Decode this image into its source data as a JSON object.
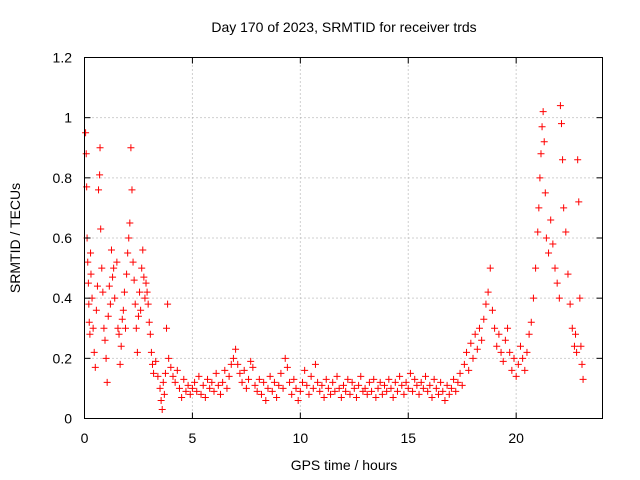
{
  "chart_data": {
    "type": "scatter",
    "title": "Day 170 of 2023, SRMTID for receiver trds",
    "xlabel": "GPS time / hours",
    "ylabel": "SRMTID / TECUs",
    "xlim": [
      0,
      24
    ],
    "ylim": [
      0,
      1.2
    ],
    "xticks": [
      0,
      5,
      10,
      15,
      20
    ],
    "yticks": [
      0,
      0.2,
      0.4,
      0.6,
      0.8,
      1,
      1.2
    ],
    "xtick_labels": [
      "0",
      "5",
      "10",
      "15",
      "20"
    ],
    "ytick_labels": [
      "0",
      "0.2",
      "0.4",
      "0.6",
      "0.8",
      "1",
      "1.2"
    ],
    "grid": true,
    "marker": "+",
    "color": "#ff0000",
    "series": [
      {
        "name": "SRMTID",
        "points": [
          [
            0.05,
            0.95
          ],
          [
            0.08,
            0.88
          ],
          [
            0.1,
            0.77
          ],
          [
            0.12,
            0.6
          ],
          [
            0.15,
            0.52
          ],
          [
            0.18,
            0.45
          ],
          [
            0.2,
            0.38
          ],
          [
            0.22,
            0.32
          ],
          [
            0.25,
            0.28
          ],
          [
            0.28,
            0.55
          ],
          [
            0.3,
            0.48
          ],
          [
            0.35,
            0.4
          ],
          [
            0.4,
            0.3
          ],
          [
            0.45,
            0.22
          ],
          [
            0.5,
            0.17
          ],
          [
            0.55,
            0.36
          ],
          [
            0.6,
            0.44
          ],
          [
            0.65,
            0.76
          ],
          [
            0.7,
            0.81
          ],
          [
            0.72,
            0.9
          ],
          [
            0.75,
            0.63
          ],
          [
            0.8,
            0.5
          ],
          [
            0.85,
            0.42
          ],
          [
            0.9,
            0.3
          ],
          [
            0.95,
            0.26
          ],
          [
            1.0,
            0.2
          ],
          [
            1.05,
            0.12
          ],
          [
            1.1,
            0.34
          ],
          [
            1.15,
            0.44
          ],
          [
            1.2,
            0.38
          ],
          [
            1.25,
            0.56
          ],
          [
            1.3,
            0.47
          ],
          [
            1.35,
            0.5
          ],
          [
            1.4,
            0.4
          ],
          [
            1.5,
            0.52
          ],
          [
            1.55,
            0.3
          ],
          [
            1.6,
            0.28
          ],
          [
            1.65,
            0.18
          ],
          [
            1.7,
            0.24
          ],
          [
            1.75,
            0.33
          ],
          [
            1.8,
            0.36
          ],
          [
            1.85,
            0.42
          ],
          [
            1.9,
            0.3
          ],
          [
            1.95,
            0.48
          ],
          [
            2.0,
            0.55
          ],
          [
            2.05,
            0.6
          ],
          [
            2.1,
            0.65
          ],
          [
            2.15,
            0.9
          ],
          [
            2.2,
            0.76
          ],
          [
            2.25,
            0.52
          ],
          [
            2.3,
            0.46
          ],
          [
            2.35,
            0.38
          ],
          [
            2.4,
            0.3
          ],
          [
            2.45,
            0.22
          ],
          [
            2.5,
            0.34
          ],
          [
            2.55,
            0.42
          ],
          [
            2.6,
            0.36
          ],
          [
            2.65,
            0.5
          ],
          [
            2.7,
            0.56
          ],
          [
            2.75,
            0.47
          ],
          [
            2.8,
            0.4
          ],
          [
            2.85,
            0.45
          ],
          [
            2.9,
            0.42
          ],
          [
            2.95,
            0.38
          ],
          [
            3.0,
            0.32
          ],
          [
            3.05,
            0.28
          ],
          [
            3.1,
            0.22
          ],
          [
            3.15,
            0.18
          ],
          [
            3.2,
            0.15
          ],
          [
            3.3,
            0.19
          ],
          [
            3.4,
            0.14
          ],
          [
            3.5,
            0.1
          ],
          [
            3.55,
            0.06
          ],
          [
            3.6,
            0.03
          ],
          [
            3.65,
            0.12
          ],
          [
            3.7,
            0.08
          ],
          [
            3.75,
            0.15
          ],
          [
            3.8,
            0.3
          ],
          [
            3.85,
            0.38
          ],
          [
            3.9,
            0.2
          ],
          [
            4.0,
            0.17
          ],
          [
            4.1,
            0.14
          ],
          [
            4.2,
            0.12
          ],
          [
            4.3,
            0.16
          ],
          [
            4.4,
            0.1
          ],
          [
            4.5,
            0.07
          ],
          [
            4.6,
            0.13
          ],
          [
            4.7,
            0.09
          ],
          [
            4.8,
            0.11
          ],
          [
            4.9,
            0.08
          ],
          [
            5.0,
            0.1
          ],
          [
            5.1,
            0.12
          ],
          [
            5.2,
            0.09
          ],
          [
            5.3,
            0.14
          ],
          [
            5.4,
            0.08
          ],
          [
            5.5,
            0.11
          ],
          [
            5.6,
            0.07
          ],
          [
            5.7,
            0.13
          ],
          [
            5.8,
            0.1
          ],
          [
            5.9,
            0.12
          ],
          [
            6.0,
            0.09
          ],
          [
            6.1,
            0.15
          ],
          [
            6.2,
            0.11
          ],
          [
            6.3,
            0.08
          ],
          [
            6.4,
            0.12
          ],
          [
            6.5,
            0.16
          ],
          [
            6.6,
            0.1
          ],
          [
            6.7,
            0.14
          ],
          [
            6.8,
            0.18
          ],
          [
            6.9,
            0.2
          ],
          [
            7.0,
            0.23
          ],
          [
            7.1,
            0.18
          ],
          [
            7.2,
            0.15
          ],
          [
            7.3,
            0.12
          ],
          [
            7.4,
            0.16
          ],
          [
            7.5,
            0.1
          ],
          [
            7.6,
            0.13
          ],
          [
            7.7,
            0.19
          ],
          [
            7.8,
            0.17
          ],
          [
            7.9,
            0.11
          ],
          [
            8.0,
            0.09
          ],
          [
            8.1,
            0.13
          ],
          [
            8.2,
            0.08
          ],
          [
            8.3,
            0.12
          ],
          [
            8.4,
            0.06
          ],
          [
            8.5,
            0.1
          ],
          [
            8.6,
            0.14
          ],
          [
            8.7,
            0.09
          ],
          [
            8.8,
            0.12
          ],
          [
            8.9,
            0.07
          ],
          [
            9.0,
            0.11
          ],
          [
            9.1,
            0.15
          ],
          [
            9.2,
            0.1
          ],
          [
            9.3,
            0.2
          ],
          [
            9.4,
            0.17
          ],
          [
            9.5,
            0.12
          ],
          [
            9.6,
            0.08
          ],
          [
            9.7,
            0.13
          ],
          [
            9.8,
            0.1
          ],
          [
            9.9,
            0.06
          ],
          [
            10.0,
            0.09
          ],
          [
            10.1,
            0.12
          ],
          [
            10.2,
            0.16
          ],
          [
            10.3,
            0.11
          ],
          [
            10.4,
            0.08
          ],
          [
            10.5,
            0.14
          ],
          [
            10.6,
            0.1
          ],
          [
            10.7,
            0.18
          ],
          [
            10.8,
            0.12
          ],
          [
            10.9,
            0.09
          ],
          [
            11.0,
            0.11
          ],
          [
            11.1,
            0.07
          ],
          [
            11.2,
            0.13
          ],
          [
            11.3,
            0.1
          ],
          [
            11.4,
            0.08
          ],
          [
            11.5,
            0.12
          ],
          [
            11.6,
            0.09
          ],
          [
            11.7,
            0.14
          ],
          [
            11.8,
            0.1
          ],
          [
            11.9,
            0.07
          ],
          [
            12.0,
            0.11
          ],
          [
            12.1,
            0.09
          ],
          [
            12.2,
            0.13
          ],
          [
            12.3,
            0.08
          ],
          [
            12.4,
            0.12
          ],
          [
            12.5,
            0.1
          ],
          [
            12.6,
            0.07
          ],
          [
            12.7,
            0.11
          ],
          [
            12.8,
            0.14
          ],
          [
            12.9,
            0.09
          ],
          [
            13.0,
            0.1
          ],
          [
            13.1,
            0.08
          ],
          [
            13.2,
            0.12
          ],
          [
            13.3,
            0.09
          ],
          [
            13.4,
            0.13
          ],
          [
            13.5,
            0.07
          ],
          [
            13.6,
            0.1
          ],
          [
            13.7,
            0.12
          ],
          [
            13.8,
            0.08
          ],
          [
            13.9,
            0.11
          ],
          [
            14.0,
            0.09
          ],
          [
            14.1,
            0.13
          ],
          [
            14.2,
            0.1
          ],
          [
            14.3,
            0.07
          ],
          [
            14.4,
            0.12
          ],
          [
            14.5,
            0.09
          ],
          [
            14.6,
            0.14
          ],
          [
            14.7,
            0.11
          ],
          [
            14.8,
            0.08
          ],
          [
            14.9,
            0.12
          ],
          [
            15.0,
            0.1
          ],
          [
            15.1,
            0.15
          ],
          [
            15.2,
            0.09
          ],
          [
            15.3,
            0.13
          ],
          [
            15.4,
            0.11
          ],
          [
            15.5,
            0.08
          ],
          [
            15.6,
            0.12
          ],
          [
            15.7,
            0.1
          ],
          [
            15.8,
            0.14
          ],
          [
            15.9,
            0.09
          ],
          [
            16.0,
            0.11
          ],
          [
            16.1,
            0.07
          ],
          [
            16.2,
            0.13
          ],
          [
            16.3,
            0.1
          ],
          [
            16.4,
            0.08
          ],
          [
            16.5,
            0.12
          ],
          [
            16.6,
            0.09
          ],
          [
            16.7,
            0.06
          ],
          [
            16.8,
            0.11
          ],
          [
            16.9,
            0.08
          ],
          [
            17.0,
            0.1
          ],
          [
            17.1,
            0.13
          ],
          [
            17.2,
            0.09
          ],
          [
            17.3,
            0.12
          ],
          [
            17.4,
            0.15
          ],
          [
            17.5,
            0.11
          ],
          [
            17.6,
            0.18
          ],
          [
            17.7,
            0.22
          ],
          [
            17.8,
            0.16
          ],
          [
            17.9,
            0.25
          ],
          [
            18.0,
            0.2
          ],
          [
            18.1,
            0.28
          ],
          [
            18.2,
            0.23
          ],
          [
            18.3,
            0.3
          ],
          [
            18.4,
            0.26
          ],
          [
            18.5,
            0.33
          ],
          [
            18.6,
            0.38
          ],
          [
            18.7,
            0.42
          ],
          [
            18.8,
            0.5
          ],
          [
            18.9,
            0.36
          ],
          [
            19.0,
            0.3
          ],
          [
            19.1,
            0.24
          ],
          [
            19.2,
            0.28
          ],
          [
            19.3,
            0.22
          ],
          [
            19.4,
            0.19
          ],
          [
            19.5,
            0.26
          ],
          [
            19.6,
            0.3
          ],
          [
            19.7,
            0.22
          ],
          [
            19.8,
            0.16
          ],
          [
            19.9,
            0.2
          ],
          [
            20.0,
            0.14
          ],
          [
            20.1,
            0.18
          ],
          [
            20.2,
            0.24
          ],
          [
            20.3,
            0.2
          ],
          [
            20.4,
            0.16
          ],
          [
            20.5,
            0.22
          ],
          [
            20.6,
            0.28
          ],
          [
            20.7,
            0.32
          ],
          [
            20.8,
            0.4
          ],
          [
            20.9,
            0.5
          ],
          [
            21.0,
            0.62
          ],
          [
            21.05,
            0.7
          ],
          [
            21.1,
            0.8
          ],
          [
            21.15,
            0.88
          ],
          [
            21.2,
            0.97
          ],
          [
            21.25,
            1.02
          ],
          [
            21.3,
            0.92
          ],
          [
            21.35,
            0.75
          ],
          [
            21.4,
            0.6
          ],
          [
            21.5,
            0.55
          ],
          [
            21.6,
            0.66
          ],
          [
            21.7,
            0.58
          ],
          [
            21.8,
            0.5
          ],
          [
            21.9,
            0.45
          ],
          [
            22.0,
            0.4
          ],
          [
            22.05,
            1.04
          ],
          [
            22.1,
            0.98
          ],
          [
            22.15,
            0.86
          ],
          [
            22.2,
            0.7
          ],
          [
            22.3,
            0.62
          ],
          [
            22.4,
            0.48
          ],
          [
            22.5,
            0.38
          ],
          [
            22.6,
            0.3
          ],
          [
            22.7,
            0.24
          ],
          [
            22.75,
            0.28
          ],
          [
            22.8,
            0.22
          ],
          [
            22.85,
            0.86
          ],
          [
            22.9,
            0.72
          ],
          [
            22.95,
            0.4
          ],
          [
            23.0,
            0.24
          ],
          [
            23.05,
            0.18
          ],
          [
            23.1,
            0.13
          ]
        ]
      }
    ]
  }
}
